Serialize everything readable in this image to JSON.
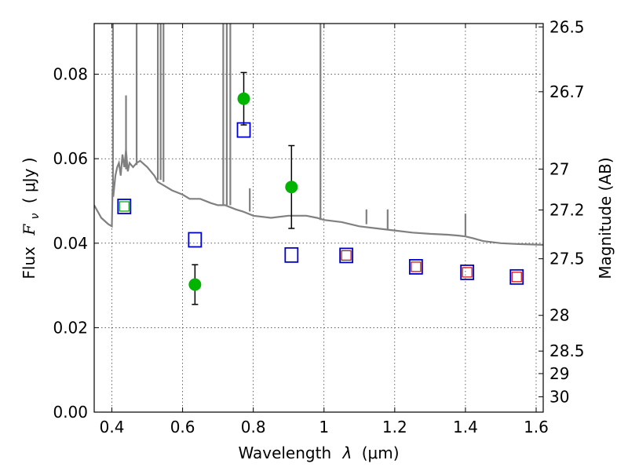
{
  "chart_data": {
    "type": "scatter",
    "xlabel": "Wavelength",
    "xlabel_symbol": "λ",
    "xlabel_unit": "(μm)",
    "ylabel": "Flux",
    "ylabel_symbol": "F",
    "ylabel_subscript": "ν",
    "ylabel_unit": "( μJy )",
    "y2label": "Magnitude (AB)",
    "xlim": [
      0.35,
      1.62
    ],
    "ylim": [
      0.0,
      0.092
    ],
    "grid": true,
    "xticks": [
      0.4,
      0.6,
      0.8,
      1.0,
      1.2,
      1.4,
      1.6
    ],
    "xtick_labels": [
      "0.4",
      "0.6",
      "0.8",
      "1",
      "1.2",
      "1.4",
      "1.6"
    ],
    "yticks": [
      0.0,
      0.02,
      0.04,
      0.06,
      0.08
    ],
    "ytick_labels": [
      "0.00",
      "0.02",
      "0.04",
      "0.06",
      "0.08"
    ],
    "mag_ticks": [
      26.5,
      26.7,
      27,
      27.2,
      27.5,
      28,
      28.5,
      29,
      30
    ],
    "mag_tick_labels": [
      "26.5",
      "26.7",
      "27",
      "27.2",
      "27.5",
      "28",
      "28.5",
      "29",
      "30"
    ],
    "colors": {
      "model": "#808080",
      "observed": "#00b400",
      "model_phot": "#0000cc",
      "model_phot_inner": "#cc0000",
      "model_phot_inner_green": "#00a000",
      "errorbar": "#000000"
    },
    "series": [
      {
        "name": "SED model spectrum",
        "kind": "line",
        "x": [
          0.35,
          0.37,
          0.39,
          0.4,
          0.402,
          0.404,
          0.41,
          0.415,
          0.42,
          0.425,
          0.43,
          0.435,
          0.44,
          0.445,
          0.45,
          0.46,
          0.47,
          0.48,
          0.5,
          0.52,
          0.53,
          0.55,
          0.57,
          0.6,
          0.62,
          0.65,
          0.68,
          0.7,
          0.72,
          0.75,
          0.77,
          0.8,
          0.85,
          0.9,
          0.95,
          0.98,
          1.0,
          1.05,
          1.1,
          1.15,
          1.2,
          1.25,
          1.3,
          1.35,
          1.38,
          1.4,
          1.42,
          1.45,
          1.5,
          1.55,
          1.62
        ],
        "y": [
          0.049,
          0.046,
          0.0445,
          0.044,
          0.053,
          0.051,
          0.056,
          0.058,
          0.059,
          0.056,
          0.061,
          0.058,
          0.062,
          0.057,
          0.059,
          0.058,
          0.059,
          0.0595,
          0.058,
          0.056,
          0.0545,
          0.0535,
          0.0525,
          0.0515,
          0.0505,
          0.0505,
          0.0495,
          0.049,
          0.049,
          0.048,
          0.0475,
          0.0465,
          0.046,
          0.0465,
          0.0465,
          0.046,
          0.0455,
          0.045,
          0.044,
          0.0435,
          0.043,
          0.0425,
          0.0422,
          0.042,
          0.0418,
          0.0416,
          0.0412,
          0.0405,
          0.04,
          0.0398,
          0.0396
        ]
      },
      {
        "name": "Emission lines",
        "kind": "spikes",
        "x": [
          0.403,
          0.44,
          0.47,
          0.53,
          0.538,
          0.546,
          0.715,
          0.725,
          0.735,
          0.79,
          0.99,
          1.12,
          1.18,
          1.4
        ],
        "peak": [
          0.092,
          0.075,
          0.092,
          0.092,
          0.092,
          0.092,
          0.092,
          0.092,
          0.092,
          0.053,
          0.092,
          0.048,
          0.048,
          0.047
        ],
        "base": [
          0.053,
          0.0575,
          0.0585,
          0.055,
          0.055,
          0.0545,
          0.049,
          0.049,
          0.049,
          0.0475,
          0.0455,
          0.0445,
          0.0433,
          0.0416
        ]
      },
      {
        "name": "Observed photometry",
        "kind": "points_with_errors",
        "x": [
          0.635,
          0.773,
          0.908
        ],
        "y": [
          0.0302,
          0.0742,
          0.0533
        ],
        "err": [
          0.0047,
          0.0062,
          0.0098
        ]
      },
      {
        "name": "Model photometry",
        "kind": "open_squares",
        "x": [
          0.435,
          0.635,
          0.773,
          0.908,
          1.063,
          1.26,
          1.405,
          1.545
        ],
        "y": [
          0.0487,
          0.0408,
          0.0668,
          0.0372,
          0.0371,
          0.0344,
          0.0331,
          0.032
        ]
      },
      {
        "name": "Model photometry (IR bands)",
        "kind": "inner_squares",
        "x": [
          1.063,
          1.26,
          1.405,
          1.545
        ],
        "y": [
          0.0371,
          0.0344,
          0.0331,
          0.032
        ]
      },
      {
        "name": "Model photometry (blue band)",
        "kind": "inner_squares_green",
        "x": [
          0.435
        ],
        "y": [
          0.0487
        ]
      }
    ]
  }
}
